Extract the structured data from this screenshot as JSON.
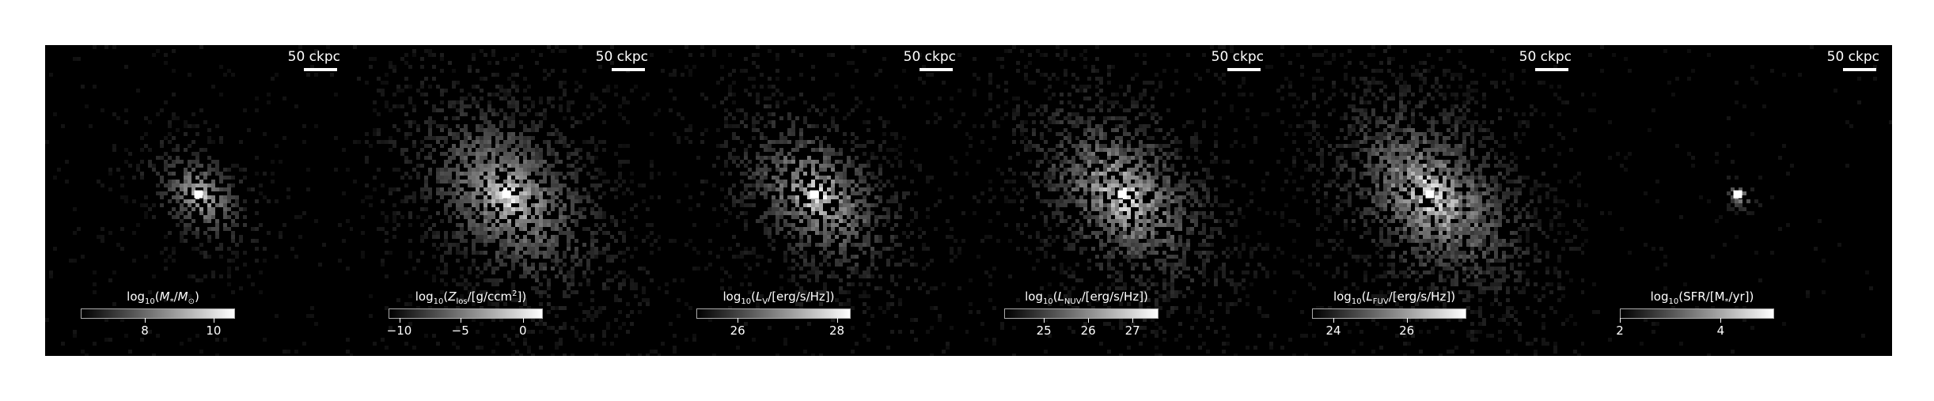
{
  "figure": {
    "panels": [
      {
        "id": "stellar-mass",
        "scale_label": "50 ckpc",
        "colorbar_label": {
          "pre": "log",
          "sub1": "10",
          "mid": "(",
          "var": "M",
          "sub2": "*",
          "post": "/",
          "var2": "M",
          "sub3": "⊙",
          "end": ")"
        },
        "ticks": [
          {
            "label": "8",
            "pos": 0.42
          },
          {
            "label": "10",
            "pos": 0.87
          }
        ],
        "map": {
          "spread": 0.22,
          "core": 1.0,
          "noise": 0.25,
          "density": 0.55
        }
      },
      {
        "id": "metal-surface-density",
        "scale_label": "50 ckpc",
        "colorbar_label": {
          "pre": "log",
          "sub1": "10",
          "mid": "(",
          "var": "Z",
          "sub2": "los",
          "post": "/[g/ccm",
          "sup": "2",
          "end": "])"
        },
        "ticks": [
          {
            "label": "−10",
            "pos": 0.07
          },
          {
            "label": "−5",
            "pos": 0.47
          },
          {
            "label": "0",
            "pos": 0.88
          }
        ],
        "map": {
          "spread": 0.42,
          "core": 1.0,
          "noise": 0.45,
          "density": 0.7
        }
      },
      {
        "id": "v-band-luminosity",
        "scale_label": "50 ckpc",
        "colorbar_label": {
          "pre": "log",
          "sub1": "10",
          "mid": "(",
          "var": "L",
          "sub2": "V",
          "post": "/[erg/s/Hz])",
          "end": ""
        },
        "ticks": [
          {
            "label": "26",
            "pos": 0.27
          },
          {
            "label": "28",
            "pos": 0.92
          }
        ],
        "map": {
          "spread": 0.36,
          "core": 1.0,
          "noise": 0.55,
          "density": 0.6
        }
      },
      {
        "id": "nuv-luminosity",
        "scale_label": "50 ckpc",
        "colorbar_label": {
          "pre": "log",
          "sub1": "10",
          "mid": "(",
          "var": "L",
          "sub2": "NUV",
          "post": "/[erg/s/Hz])",
          "end": ""
        },
        "ticks": [
          {
            "label": "25",
            "pos": 0.26
          },
          {
            "label": "26",
            "pos": 0.55
          },
          {
            "label": "27",
            "pos": 0.84
          }
        ],
        "map": {
          "spread": 0.4,
          "core": 0.9,
          "noise": 0.7,
          "density": 0.7
        }
      },
      {
        "id": "fuv-luminosity",
        "scale_label": "50 ckpc",
        "colorbar_label": {
          "pre": "log",
          "sub1": "10",
          "mid": "(",
          "var": "L",
          "sub2": "FUV",
          "post": "/[erg/s/Hz])",
          "end": ""
        },
        "ticks": [
          {
            "label": "24",
            "pos": 0.14
          },
          {
            "label": "26",
            "pos": 0.62
          }
        ],
        "map": {
          "spread": 0.42,
          "core": 0.85,
          "noise": 0.75,
          "density": 0.75
        }
      },
      {
        "id": "star-formation-rate",
        "scale_label": "50 ckpc",
        "colorbar_label": {
          "pre": "log",
          "sub1": "10",
          "mid": "(SFR/[M",
          "var": "",
          "sub2": "*",
          "post": "/yr])",
          "end": ""
        },
        "ticks": [
          {
            "label": "2",
            "pos": 0.0
          },
          {
            "label": "4",
            "pos": 0.66
          }
        ],
        "map": {
          "spread": 0.07,
          "core": 1.0,
          "noise": 0.2,
          "density": 0.35
        }
      }
    ]
  }
}
